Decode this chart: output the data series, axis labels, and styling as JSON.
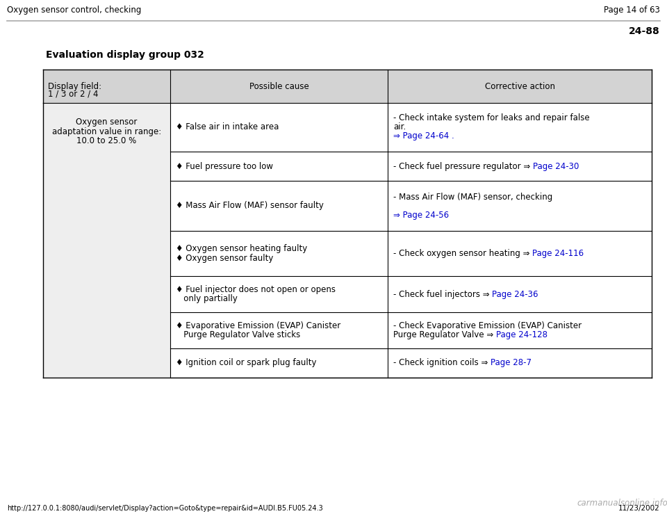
{
  "title_left": "Oxygen sensor control, checking",
  "title_right": "Page 14 of 63",
  "page_ref": "24-88",
  "section_title": "Evaluation display group 032",
  "header_bg": "#d3d3d3",
  "col1_header_line1": "Display field:",
  "col1_header_line2": "1 / 3 or 2 / 4",
  "col2_header": "Possible cause",
  "col3_header": "Corrective action",
  "col1_condition_line1": "Oxygen sensor",
  "col1_condition_line2": "adaptation value in range:",
  "col1_condition_line3": "10.0 to 25.0 %",
  "rows": [
    {
      "cause_lines": [
        "♦ False air in intake area"
      ],
      "corr_lines": [
        {
          "text": "- Check intake system for leaks and repair false",
          "color": "black"
        },
        {
          "text": "air.",
          "color": "black"
        },
        {
          "text": "⇒ Page 24-64 .",
          "color": "link"
        }
      ]
    },
    {
      "cause_lines": [
        "♦ Fuel pressure too low"
      ],
      "corr_lines": [
        {
          "text": "- Check fuel pressure regulator ⇒ ",
          "color": "black",
          "append_link": "Page 24-30"
        }
      ]
    },
    {
      "cause_lines": [
        "♦ Mass Air Flow (MAF) sensor faulty"
      ],
      "corr_lines": [
        {
          "text": "- Mass Air Flow (MAF) sensor, checking",
          "color": "black"
        },
        {
          "text": "",
          "color": "black"
        },
        {
          "text": "⇒ Page 24-56",
          "color": "link"
        }
      ]
    },
    {
      "cause_lines": [
        "♦ Oxygen sensor heating faulty",
        "♦ Oxygen sensor faulty"
      ],
      "corr_lines": [
        {
          "text": "- Check oxygen sensor heating ⇒ ",
          "color": "black",
          "append_link": "Page 24-116"
        }
      ]
    },
    {
      "cause_lines": [
        "♦ Fuel injector does not open or opens",
        "   only partially"
      ],
      "corr_lines": [
        {
          "text": "- Check fuel injectors ⇒ ",
          "color": "black",
          "append_link": "Page 24-36"
        }
      ]
    },
    {
      "cause_lines": [
        "♦ Evaporative Emission (EVAP) Canister",
        "   Purge Regulator Valve sticks"
      ],
      "corr_lines": [
        {
          "text": "- Check Evaporative Emission (EVAP) Canister",
          "color": "black"
        },
        {
          "text": "Purge Regulator Valve ⇒ ",
          "color": "black",
          "append_link": "Page 24-128"
        }
      ]
    },
    {
      "cause_lines": [
        "♦ Ignition coil or spark plug faulty"
      ],
      "corr_lines": [
        {
          "text": "- Check ignition coils ⇒ ",
          "color": "black",
          "append_link": "Page 28-7"
        }
      ]
    }
  ],
  "link_color": "#0000cc",
  "footer_url": "http://127.0.0.1:8080/audi/servlet/Display?action=Goto&type=repair&id=AUDI.B5.FU05.24.3",
  "footer_date": "11/23/2002",
  "footer_logo": "carmanualsonline.info",
  "bg_color": "#ffffff",
  "text_color": "#000000"
}
